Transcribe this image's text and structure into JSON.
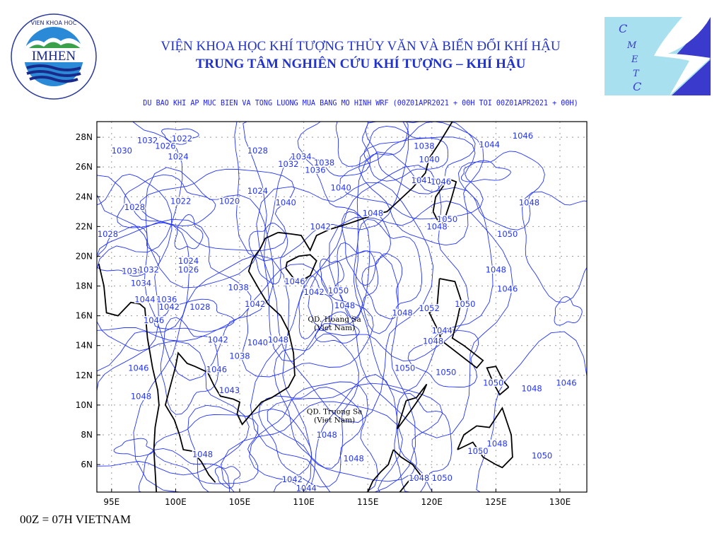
{
  "header": {
    "institute_line1": "VIỆN KHOA HỌC KHÍ TƯỢNG THỦY VĂN VÀ BIẾN ĐỔI KHÍ HẬU",
    "institute_line2": "TRUNG TÂM NGHIÊN CỨU KHÍ TƯỢNG – KHÍ HẬU",
    "subtitle": "DU BAO KHI AP MUC BIEN VA TONG LUONG MUA BANG MO HINH WRF (00Z01APR2021 + 00H TOI 00Z01APR2021 + 00H)"
  },
  "logos": {
    "left": {
      "top_text": "VIEN KHOA HOC",
      "center_text": "IMHEN",
      "bottom_text": "KHI TUONG THUY VAN VA BIEN DOI KHI HAU"
    },
    "right": {
      "text": "CMETC"
    }
  },
  "map": {
    "lon_range": [
      93.85,
      132.1
    ],
    "lat_range": [
      4.15,
      29.05
    ],
    "lon_ticks": [
      "95E",
      "100E",
      "105E",
      "110E",
      "115E",
      "120E",
      "125E",
      "130E"
    ],
    "lat_ticks": [
      "6N",
      "8N",
      "10N",
      "12N",
      "14N",
      "16N",
      "18N",
      "20N",
      "22N",
      "24N",
      "26N",
      "28N"
    ],
    "contour_color": "#2233ff",
    "coast_color": "#000000",
    "annotations": [
      {
        "line1": "QD. Hoang Sa",
        "line2": "(Viet Nam)",
        "lon": 112.4,
        "lat": 15.6
      },
      {
        "line1": "QD. Truong Sa",
        "line2": "(Viet Nam)",
        "lon": 112.4,
        "lat": 9.4
      }
    ],
    "pressure_labels": [
      {
        "v": "1030",
        "lon": 95.8,
        "lat": 27.1
      },
      {
        "v": "1032",
        "lon": 97.8,
        "lat": 27.8
      },
      {
        "v": "1026",
        "lon": 99.2,
        "lat": 27.4
      },
      {
        "v": "1022",
        "lon": 100.5,
        "lat": 27.9
      },
      {
        "v": "1024",
        "lon": 100.2,
        "lat": 26.7
      },
      {
        "v": "1028",
        "lon": 106.4,
        "lat": 27.1
      },
      {
        "v": "1034",
        "lon": 109.8,
        "lat": 26.7
      },
      {
        "v": "1032",
        "lon": 108.8,
        "lat": 26.2
      },
      {
        "v": "1036",
        "lon": 110.9,
        "lat": 25.8
      },
      {
        "v": "1038",
        "lon": 111.6,
        "lat": 26.3
      },
      {
        "v": "1024",
        "lon": 106.4,
        "lat": 24.4
      },
      {
        "v": "1022",
        "lon": 100.4,
        "lat": 23.7
      },
      {
        "v": "1020",
        "lon": 104.2,
        "lat": 23.7
      },
      {
        "v": "1040",
        "lon": 108.6,
        "lat": 23.6
      },
      {
        "v": "1040",
        "lon": 112.9,
        "lat": 24.6
      },
      {
        "v": "1048",
        "lon": 115.4,
        "lat": 22.9
      },
      {
        "v": "1042",
        "lon": 111.3,
        "lat": 22.0
      },
      {
        "v": "1028",
        "lon": 96.8,
        "lat": 23.3
      },
      {
        "v": "1028",
        "lon": 94.7,
        "lat": 21.5
      },
      {
        "v": "1038",
        "lon": 96.6,
        "lat": 19.0
      },
      {
        "v": "1032",
        "lon": 97.9,
        "lat": 19.1
      },
      {
        "v": "1034",
        "lon": 97.3,
        "lat": 18.2
      },
      {
        "v": "1044",
        "lon": 97.6,
        "lat": 17.1
      },
      {
        "v": "1036",
        "lon": 99.3,
        "lat": 17.1
      },
      {
        "v": "1042",
        "lon": 99.5,
        "lat": 16.6
      },
      {
        "v": "1028",
        "lon": 101.9,
        "lat": 16.6
      },
      {
        "v": "1024",
        "lon": 101.0,
        "lat": 19.7
      },
      {
        "v": "1026",
        "lon": 101.0,
        "lat": 19.1
      },
      {
        "v": "1046",
        "lon": 98.3,
        "lat": 15.7
      },
      {
        "v": "1042",
        "lon": 103.3,
        "lat": 14.4
      },
      {
        "v": "1040",
        "lon": 106.4,
        "lat": 14.2
      },
      {
        "v": "1038",
        "lon": 105.0,
        "lat": 13.3
      },
      {
        "v": "1046",
        "lon": 103.2,
        "lat": 12.4
      },
      {
        "v": "1046",
        "lon": 97.1,
        "lat": 12.5
      },
      {
        "v": "1048",
        "lon": 97.3,
        "lat": 10.6
      },
      {
        "v": "1043",
        "lon": 104.2,
        "lat": 11.0
      },
      {
        "v": "1048",
        "lon": 108.0,
        "lat": 14.4
      },
      {
        "v": "1042",
        "lon": 106.2,
        "lat": 16.8
      },
      {
        "v": "1038",
        "lon": 104.9,
        "lat": 17.9
      },
      {
        "v": "1046",
        "lon": 109.3,
        "lat": 18.3
      },
      {
        "v": "1042",
        "lon": 110.8,
        "lat": 17.6
      },
      {
        "v": "1050",
        "lon": 112.7,
        "lat": 17.7
      },
      {
        "v": "1048",
        "lon": 113.2,
        "lat": 16.7
      },
      {
        "v": "1048",
        "lon": 117.7,
        "lat": 16.2
      },
      {
        "v": "1050",
        "lon": 117.9,
        "lat": 12.5
      },
      {
        "v": "1050",
        "lon": 121.1,
        "lat": 12.2
      },
      {
        "v": "1052",
        "lon": 119.8,
        "lat": 16.5
      },
      {
        "v": "1050",
        "lon": 122.6,
        "lat": 16.8
      },
      {
        "v": "1044",
        "lon": 120.8,
        "lat": 15.0
      },
      {
        "v": "1048",
        "lon": 120.1,
        "lat": 14.3
      },
      {
        "v": "1050",
        "lon": 124.8,
        "lat": 11.5
      },
      {
        "v": "1048",
        "lon": 127.8,
        "lat": 11.1
      },
      {
        "v": "1046",
        "lon": 130.5,
        "lat": 11.5
      },
      {
        "v": "1046",
        "lon": 125.9,
        "lat": 17.8
      },
      {
        "v": "1048",
        "lon": 125.0,
        "lat": 19.1
      },
      {
        "v": "1050",
        "lon": 125.9,
        "lat": 21.5
      },
      {
        "v": "1048",
        "lon": 127.6,
        "lat": 23.6
      },
      {
        "v": "1044",
        "lon": 124.5,
        "lat": 27.5
      },
      {
        "v": "1046",
        "lon": 127.1,
        "lat": 28.1
      },
      {
        "v": "1038",
        "lon": 119.4,
        "lat": 27.4
      },
      {
        "v": "1040",
        "lon": 119.8,
        "lat": 26.5
      },
      {
        "v": "1046",
        "lon": 120.7,
        "lat": 25.0
      },
      {
        "v": "1041",
        "lon": 119.2,
        "lat": 25.1
      },
      {
        "v": "1050",
        "lon": 121.2,
        "lat": 22.5
      },
      {
        "v": "1048",
        "lon": 120.4,
        "lat": 22.0
      },
      {
        "v": "1048",
        "lon": 111.8,
        "lat": 8.0
      },
      {
        "v": "1048",
        "lon": 113.9,
        "lat": 6.4
      },
      {
        "v": "1042",
        "lon": 109.1,
        "lat": 5.0
      },
      {
        "v": "1044",
        "lon": 110.2,
        "lat": 4.4
      },
      {
        "v": "1048",
        "lon": 102.1,
        "lat": 6.7
      },
      {
        "v": "1048",
        "lon": 119.0,
        "lat": 5.1
      },
      {
        "v": "1050",
        "lon": 120.8,
        "lat": 5.1
      },
      {
        "v": "1050",
        "lon": 123.6,
        "lat": 6.9
      },
      {
        "v": "1048",
        "lon": 125.1,
        "lat": 7.4
      },
      {
        "v": "1050",
        "lon": 128.6,
        "lat": 6.6
      }
    ]
  },
  "footer": {
    "timezone_note": "00Z = 07H VIETNAM"
  }
}
